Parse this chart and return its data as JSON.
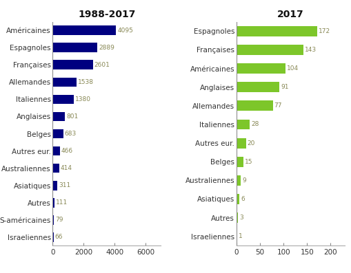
{
  "left": {
    "title": "1988-2017",
    "categories": [
      "Américaines",
      "Espagnoles",
      "Françaises",
      "Allemandes",
      "Italiennes",
      "Anglaises",
      "Belges",
      "Autres eur.",
      "Australiennes",
      "Asiatiques",
      "Autres",
      "S-américaines",
      "Israeliennes"
    ],
    "values": [
      4095,
      2889,
      2601,
      1538,
      1380,
      801,
      683,
      466,
      414,
      311,
      111,
      79,
      66
    ],
    "bar_color": "#000080",
    "xlim": [
      0,
      7000
    ],
    "xticks": [
      0,
      2000,
      4000,
      6000
    ]
  },
  "right": {
    "title": "2017",
    "categories": [
      "Espagnoles",
      "Françaises",
      "Américaines",
      "Anglaises",
      "Allemandes",
      "Italiennes",
      "Autres eur.",
      "Belges",
      "Australiennes",
      "Asiatiques",
      "Autres",
      "Israeliennes"
    ],
    "values": [
      172,
      143,
      104,
      91,
      77,
      28,
      20,
      15,
      9,
      6,
      3,
      1
    ],
    "bar_color": "#7DC62A",
    "xlim": [
      0,
      230
    ],
    "xticks": [
      0,
      50,
      100,
      150,
      200
    ]
  },
  "label_color": "#333333",
  "value_color": "#888855",
  "title_fontsize": 10,
  "label_fontsize": 7.5,
  "value_fontsize": 6.5,
  "tick_fontsize": 7.5,
  "background_color": "#ffffff"
}
